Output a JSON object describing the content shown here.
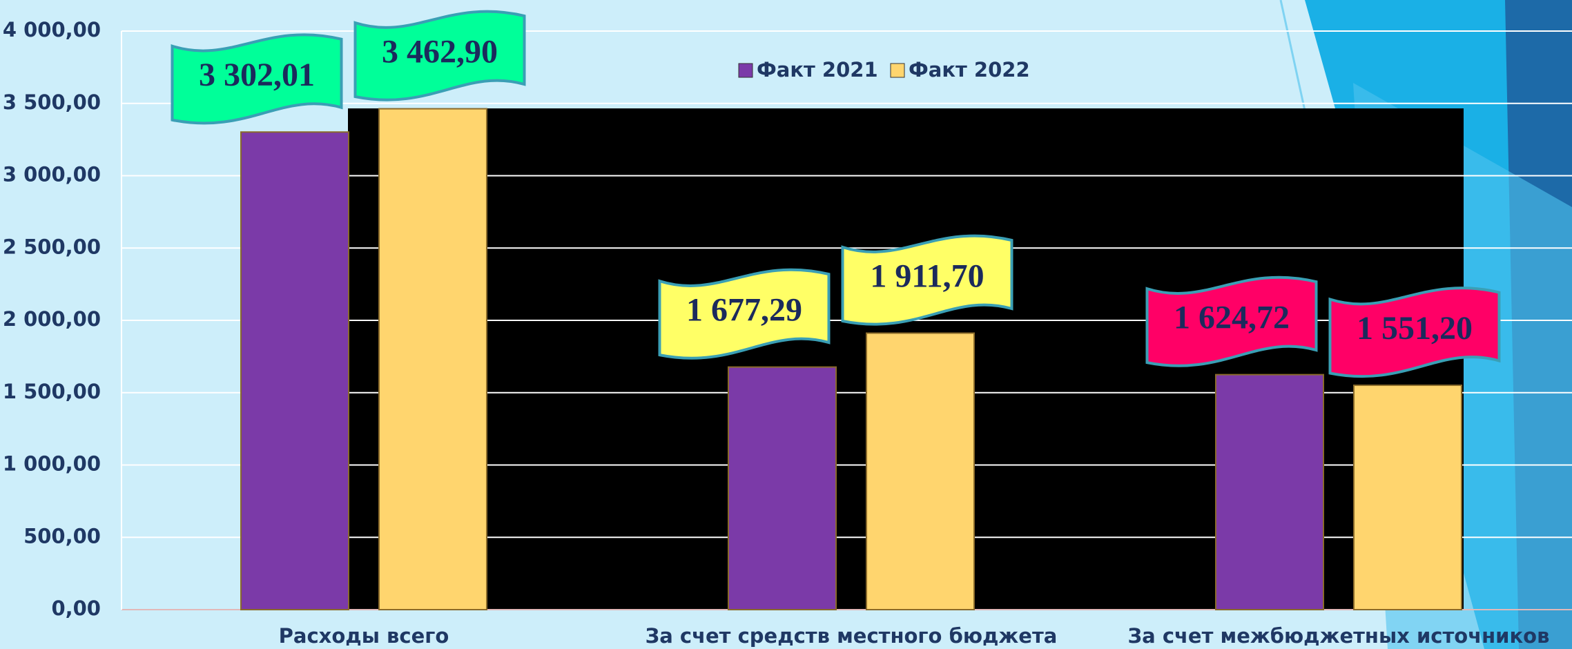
{
  "chart_data": {
    "type": "bar",
    "categories": [
      "Расходы всего",
      "За счет средств местного бюджета",
      "За счет межбюджетных источников"
    ],
    "series": [
      {
        "name": "Факт 2021",
        "color": "#7b3aa8",
        "values": [
          3302.01,
          1677.29,
          1624.72
        ],
        "value_labels": [
          "3 302,01",
          "1 677,29",
          "1 624,72"
        ]
      },
      {
        "name": "Факт 2022",
        "color": "#ffd56e",
        "values": [
          3462.9,
          1911.7,
          1551.2
        ],
        "value_labels": [
          "3 462,90",
          "1 911,70",
          "1 551,20"
        ]
      }
    ],
    "label_colors": [
      "#00ff99",
      "#ffff66",
      "#ff0066"
    ],
    "ylim": [
      0,
      4000
    ],
    "yticks": [
      {
        "value": 0,
        "label": "0,00"
      },
      {
        "value": 500,
        "label": "500,00"
      },
      {
        "value": 1000,
        "label": "1 000,00"
      },
      {
        "value": 1500,
        "label": "1 500,00"
      },
      {
        "value": 2000,
        "label": "2 000,00"
      },
      {
        "value": 2500,
        "label": "2 500,00"
      },
      {
        "value": 3000,
        "label": "3 000,00"
      },
      {
        "value": 3500,
        "label": "3 500,00"
      },
      {
        "value": 4000,
        "label": "4 000,00"
      }
    ],
    "grid": true,
    "legend": "top"
  }
}
